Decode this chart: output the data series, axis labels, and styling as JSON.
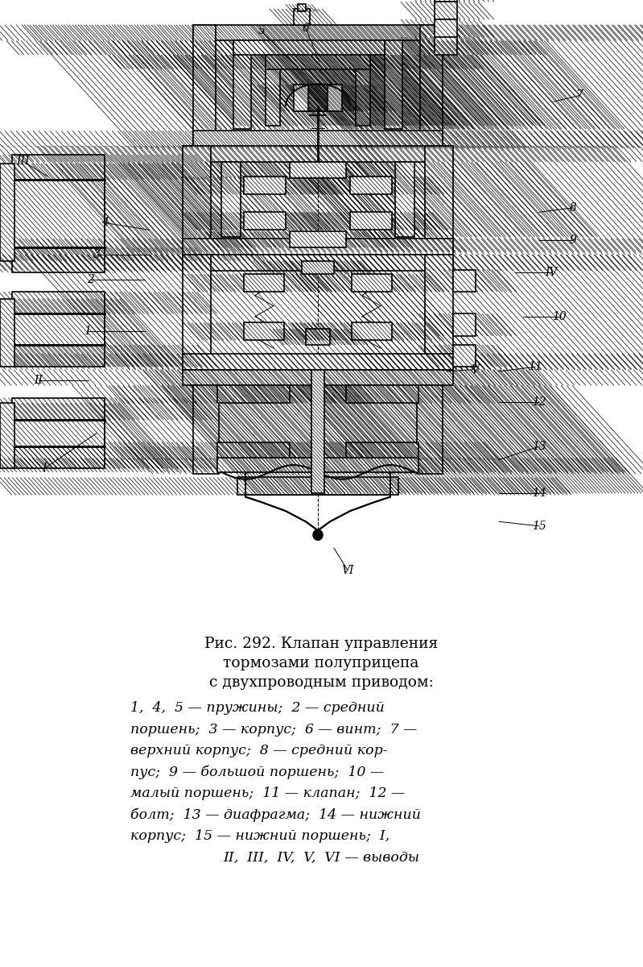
{
  "title_line1": "Рис. 292. Клапан управления",
  "title_line2": "тормозами полуприцепа",
  "title_line3": "с двухпроводным приводом:",
  "bg_color": "#ffffff",
  "text_color": "#000000",
  "figure_width": 7.99,
  "figure_height": 12.0,
  "dpi": 100,
  "font_size_title": 13.5,
  "font_size_caption": 12.5
}
